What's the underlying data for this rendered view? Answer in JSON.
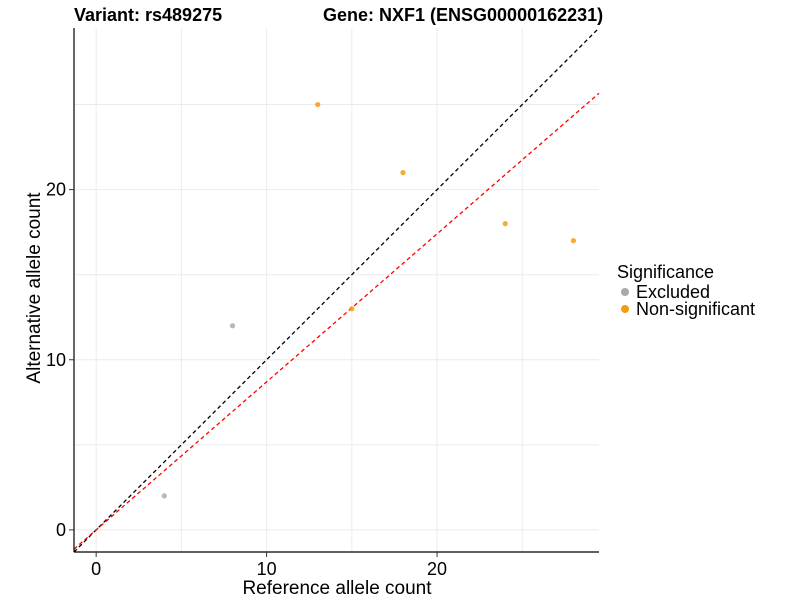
{
  "chart_data": {
    "type": "scatter",
    "title_left": "Variant: rs489275",
    "title_right": "Gene: NXF1 (ENSG00000162231)",
    "xlabel": "Reference allele count",
    "ylabel": "Alternative allele count",
    "xlim": [
      -1.3,
      29.5
    ],
    "ylim": [
      -1.3,
      29.5
    ],
    "xticks": [
      0,
      10,
      20
    ],
    "yticks": [
      0,
      10,
      20
    ],
    "grid": true,
    "legend": {
      "title": "Significance",
      "position": "right",
      "entries": [
        {
          "label": "Excluded",
          "color": "#aaaaaa"
        },
        {
          "label": "Non-significant",
          "color": "#f39c12"
        }
      ]
    },
    "reference_lines": [
      {
        "name": "identity",
        "slope": 1.0,
        "intercept": 0,
        "color": "#000000",
        "dash": true
      },
      {
        "name": "fitted",
        "slope": 0.87,
        "intercept": 0,
        "color": "#ff0000",
        "dash": true
      }
    ],
    "series": [
      {
        "name": "Excluded",
        "color": "#aaaaaa",
        "points": [
          {
            "x": 4,
            "y": 2
          },
          {
            "x": 8,
            "y": 12
          }
        ]
      },
      {
        "name": "Non-significant",
        "color": "#f39c12",
        "points": [
          {
            "x": 13,
            "y": 25
          },
          {
            "x": 18,
            "y": 21
          },
          {
            "x": 15,
            "y": 13
          },
          {
            "x": 24,
            "y": 18
          },
          {
            "x": 28,
            "y": 17
          }
        ]
      }
    ]
  }
}
